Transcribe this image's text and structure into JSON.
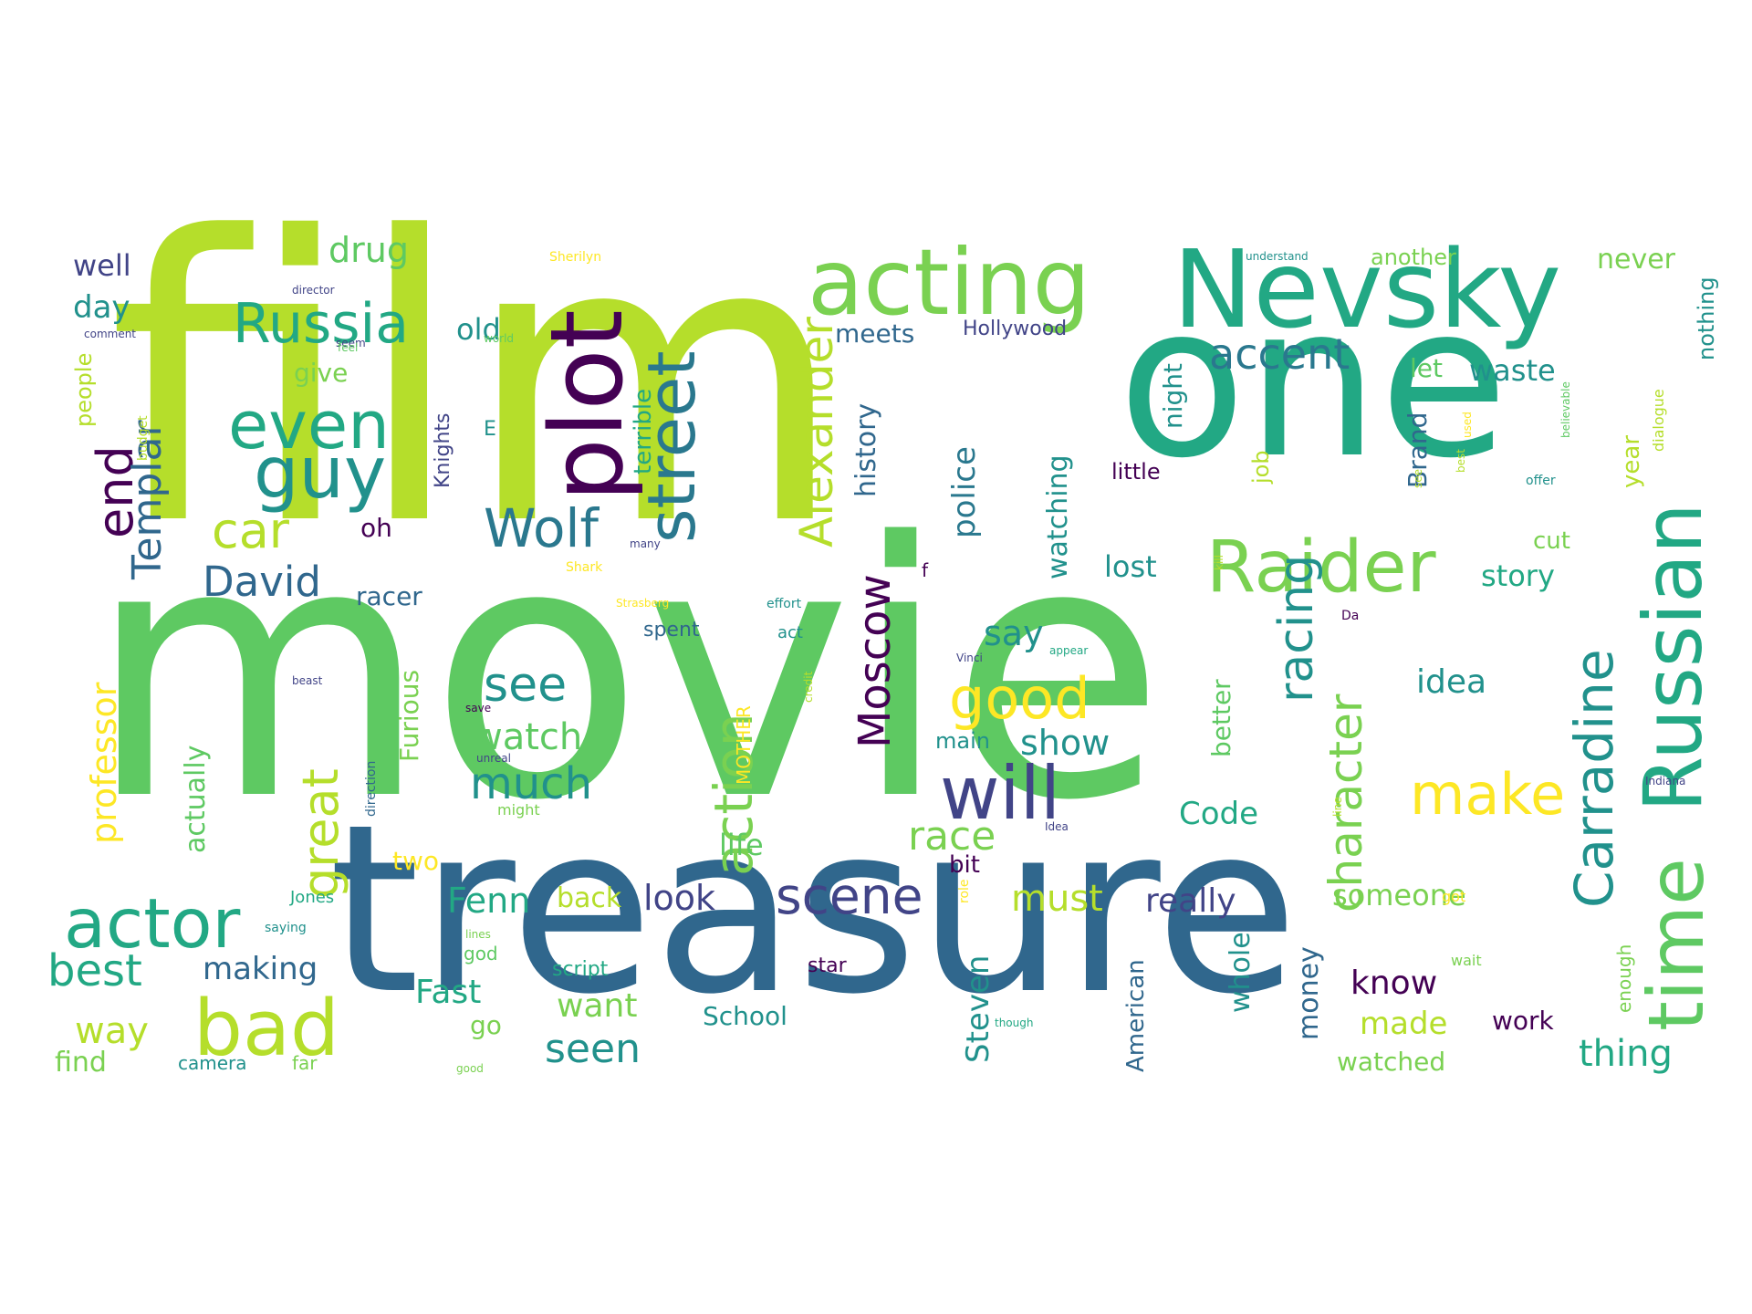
{
  "palette": {
    "dark_purple": "#440154",
    "indigo": "#414487",
    "steel_blue": "#2a788e",
    "deep_blue": "#30678d",
    "teal": "#21918c",
    "sea_green": "#22a884",
    "green": "#5ec962",
    "light_green": "#7ad151",
    "lime": "#b5de2b",
    "yellow": "#fde725"
  },
  "words": {
    "movie": "movie",
    "film": "film",
    "treasure": "treasure",
    "one": "one",
    "nevsky": "Nevsky",
    "acting": "acting",
    "plot": "plot",
    "even": "even",
    "guy": "guy",
    "russia": "Russia",
    "street": "street",
    "russian": "Russian",
    "time": "time",
    "raider": "Raider",
    "carradine": "Carradine",
    "wolf": "Wolf",
    "alexander": "Alexander",
    "accent": "accent",
    "car": "car",
    "end": "end",
    "templar": "Templar",
    "david": "David",
    "drug": "drug",
    "well": "well",
    "day": "day",
    "old": "old",
    "give": "give",
    "people": "people",
    "actor": "actor",
    "bad": "bad",
    "best": "best",
    "way": "way",
    "find": "find",
    "great": "great",
    "professor": "professor",
    "actually": "actually",
    "action": "action",
    "see": "see",
    "much": "much",
    "watch": "watch",
    "will": "will",
    "good": "good",
    "moscow": "Moscow",
    "scene": "scene",
    "racing": "racing",
    "character": "character",
    "make": "make",
    "race": "race",
    "must": "must",
    "fenn": "Fenn",
    "look": "look",
    "fast": "Fast",
    "seen": "seen",
    "making": "making",
    "back": "back",
    "want": "want",
    "go": "go",
    "school": "School",
    "steven": "Steven",
    "american": "American",
    "money": "money",
    "whole": "whole",
    "know": "know",
    "made": "made",
    "work": "work",
    "thing": "thing",
    "watched": "watched",
    "someone": "someone",
    "really": "really",
    "history": "history",
    "police": "police",
    "watching": "watching",
    "night": "night",
    "brand": "Brand",
    "lost": "lost",
    "story": "story",
    "cut": "cut",
    "year": "year",
    "never": "never",
    "nothing": "nothing",
    "another": "another",
    "waste": "waste",
    "let": "let",
    "idea": "idea",
    "code": "Code",
    "life": "life",
    "show": "show",
    "say": "say",
    "main": "main",
    "bit": "bit",
    "two": "two",
    "furious": "Furious",
    "racer": "racer",
    "spent": "spent",
    "meets": "meets",
    "hollywood": "Hollywood",
    "terrible": "terrible",
    "knights": "Knights",
    "oh": "oh",
    "little": "little",
    "job": "job",
    "better": "better",
    "mother": "MOTHER",
    "jones": "Jones",
    "script": "script",
    "star": "star",
    "camera": "camera",
    "far": "far",
    "god": "god",
    "enough": "enough",
    "dialogue": "dialogue",
    "director": "director",
    "comment": "comment",
    "budget": "budget",
    "world": "world",
    "sherilyn": "Sherilyn",
    "understand": "understand",
    "da": "Da",
    "vinci": "Vinci",
    "indiana": "Indiana",
    "act": "act",
    "effort": "effort",
    "appear": "appear",
    "credit": "credit",
    "might": "might",
    "role": "role",
    "got": "got",
    "wait": "wait",
    "though": "though",
    "saying": "saying",
    "beast": "beast",
    "seem": "seem",
    "lines": "lines",
    "many": "many",
    "shark": "Shark",
    "strasberg": "Strasberg",
    "offer": "offer",
    "believable": "believable",
    "kill": "kill",
    "line": "line",
    "e": "E",
    "f": "f",
    "direction": "direction",
    "idea2": "Idea",
    "save": "save",
    "unreal": "unreal",
    "good2": "good",
    "feel": "feel",
    "used": "used",
    "see2": "see",
    "best2": "best"
  }
}
